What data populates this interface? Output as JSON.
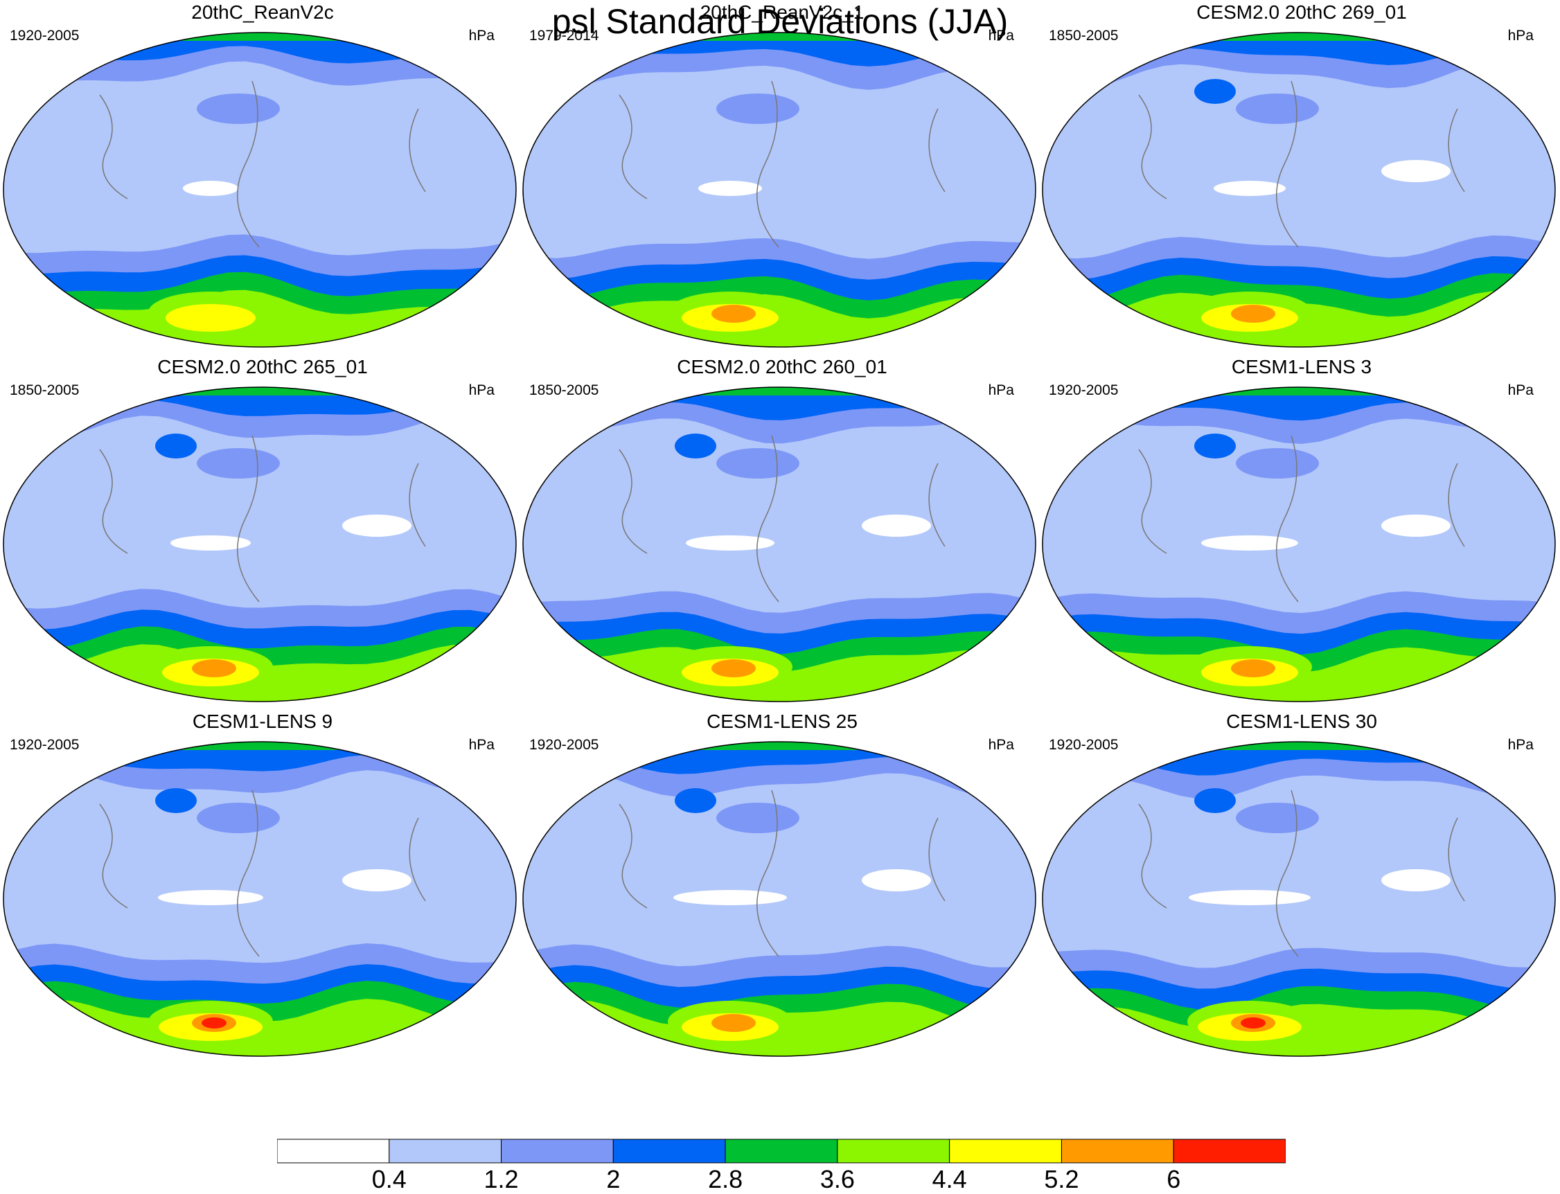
{
  "title": "psl Standard Deviations (JJA)",
  "panels": [
    {
      "title": "20thC_ReanV2c",
      "years": "1920-2005",
      "units": "hPa"
    },
    {
      "title": "20thC_ReanV2c_1",
      "years": "1979-2014",
      "units": "hPa"
    },
    {
      "title": "CESM2.0 20thC 269_01",
      "years": "1850-2005",
      "units": "hPa"
    },
    {
      "title": "CESM2.0 20thC 265_01",
      "years": "1850-2005",
      "units": "hPa"
    },
    {
      "title": "CESM2.0 20thC 260_01",
      "years": "1850-2005",
      "units": "hPa"
    },
    {
      "title": "CESM1-LENS 3",
      "years": "1920-2005",
      "units": "hPa"
    },
    {
      "title": "CESM1-LENS 9",
      "years": "1920-2005",
      "units": "hPa"
    },
    {
      "title": "CESM1-LENS 25",
      "years": "1920-2005",
      "units": "hPa"
    },
    {
      "title": "CESM1-LENS 30",
      "years": "1920-2005",
      "units": "hPa"
    }
  ],
  "colorbar": {
    "colors": [
      "#ffffff",
      "#b3c8fa",
      "#7d97f7",
      "#0064f5",
      "#00c032",
      "#8cf500",
      "#ffff00",
      "#ff9b00",
      "#ff1e00"
    ],
    "labels": [
      "0.4",
      "1.2",
      "2",
      "2.8",
      "3.6",
      "4.4",
      "5.2",
      "6"
    ]
  },
  "map_colors": {
    "white": "#ffffff",
    "lightblue": "#b3c8fa",
    "midblue": "#7d97f7",
    "blue": "#0064f5",
    "green": "#00c032",
    "lime": "#8cf500",
    "yellow": "#ffff00",
    "orange": "#ff9b00",
    "red": "#ff1e00",
    "coast": "#777777",
    "outline": "#000000"
  }
}
